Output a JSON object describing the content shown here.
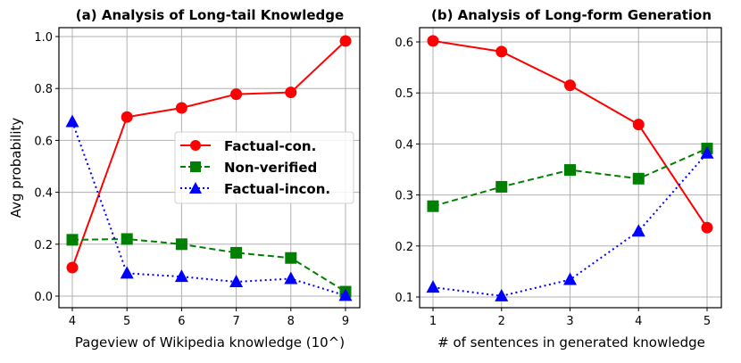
{
  "chart_data": [
    {
      "type": "line",
      "title": "(a) Analysis of Long-tail Knowledge",
      "xlabel": "Pageview of Wikipedia knowledge (10^)",
      "ylabel": "Avg probability",
      "x": [
        4,
        5,
        6,
        7,
        8,
        9
      ],
      "xticks": [
        "4",
        "5",
        "6",
        "7",
        "8",
        "9"
      ],
      "yticks": [
        "0.0",
        "0.2",
        "0.4",
        "0.6",
        "0.8",
        "1.0"
      ],
      "ylim": [
        -0.02,
        1.03
      ],
      "grid": true,
      "legend_position": "center right",
      "series": [
        {
          "name": "Factual-con.",
          "color": "#ff0000",
          "marker": "circle",
          "linestyle": "solid",
          "values": [
            0.11,
            0.69,
            0.725,
            0.778,
            0.785,
            0.983
          ]
        },
        {
          "name": "Non-verified",
          "color": "#008000",
          "marker": "square",
          "linestyle": "dashed",
          "values": [
            0.217,
            0.22,
            0.2,
            0.167,
            0.147,
            0.017
          ]
        },
        {
          "name": "Factual-incon.",
          "color": "#0000ff",
          "marker": "triangle",
          "linestyle": "dotted",
          "values": [
            0.672,
            0.088,
            0.075,
            0.055,
            0.067,
            0.002
          ]
        }
      ]
    },
    {
      "type": "line",
      "title": "(b) Analysis of Long-form Generation",
      "xlabel": "# of sentences in generated knowledge",
      "ylabel": "",
      "x": [
        1,
        2,
        3,
        4,
        5
      ],
      "xticks": [
        "1",
        "2",
        "3",
        "4",
        "5"
      ],
      "yticks": [
        "0.1",
        "0.2",
        "0.3",
        "0.4",
        "0.5",
        "0.6"
      ],
      "ylim": [
        0.078,
        0.625
      ],
      "grid": true,
      "series": [
        {
          "name": "Factual-con.",
          "color": "#ff0000",
          "marker": "circle",
          "linestyle": "solid",
          "values": [
            0.602,
            0.581,
            0.515,
            0.438,
            0.236
          ]
        },
        {
          "name": "Non-verified",
          "color": "#008000",
          "marker": "square",
          "linestyle": "dashed",
          "values": [
            0.278,
            0.316,
            0.349,
            0.332,
            0.391
          ]
        },
        {
          "name": "Factual-incon.",
          "color": "#0000ff",
          "marker": "triangle",
          "linestyle": "dotted",
          "values": [
            0.119,
            0.102,
            0.134,
            0.229,
            0.382
          ]
        }
      ]
    }
  ],
  "legend": {
    "items": [
      "Factual-con.",
      "Non-verified",
      "Factual-incon."
    ]
  }
}
